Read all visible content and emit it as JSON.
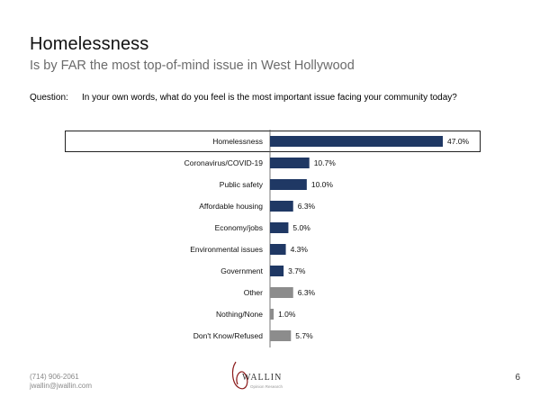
{
  "header": {
    "title": "Homelessness",
    "subtitle": "Is by FAR the most top-of-mind issue in West Hollywood"
  },
  "question": {
    "label": "Question:",
    "text": "In your own words, what do you feel is the most important issue facing your community today?"
  },
  "footer": {
    "phone": "(714) 906-2061",
    "email": "jwallin@jwallin.com",
    "page_number": "6",
    "logo_text": "WALLIN",
    "logo_sub": "Opinion Research"
  },
  "colors": {
    "primary_bar": "#1f3864",
    "secondary_bar": "#8c8c8c",
    "highlight_border": "#222222"
  },
  "chart_data": {
    "type": "bar",
    "orientation": "horizontal",
    "unit": "%",
    "highlighted_category": "Homelessness",
    "categories": [
      "Homelessness",
      "Coronavirus/COVID-19",
      "Public safety",
      "Affordable housing",
      "Economy/jobs",
      "Environmental issues",
      "Government",
      "Other",
      "Nothing/None",
      "Don't Know/Refused"
    ],
    "values": [
      47.0,
      10.7,
      10.0,
      6.3,
      5.0,
      4.3,
      3.7,
      6.3,
      1.0,
      5.7
    ],
    "labels": [
      "47.0%",
      "10.7%",
      "10.0%",
      "6.3%",
      "5.0%",
      "4.3%",
      "3.7%",
      "6.3%",
      "1.0%",
      "5.7%"
    ],
    "bar_groups": [
      "primary",
      "primary",
      "primary",
      "primary",
      "primary",
      "primary",
      "primary",
      "secondary",
      "secondary",
      "secondary"
    ],
    "xlim": [
      0,
      50
    ]
  }
}
